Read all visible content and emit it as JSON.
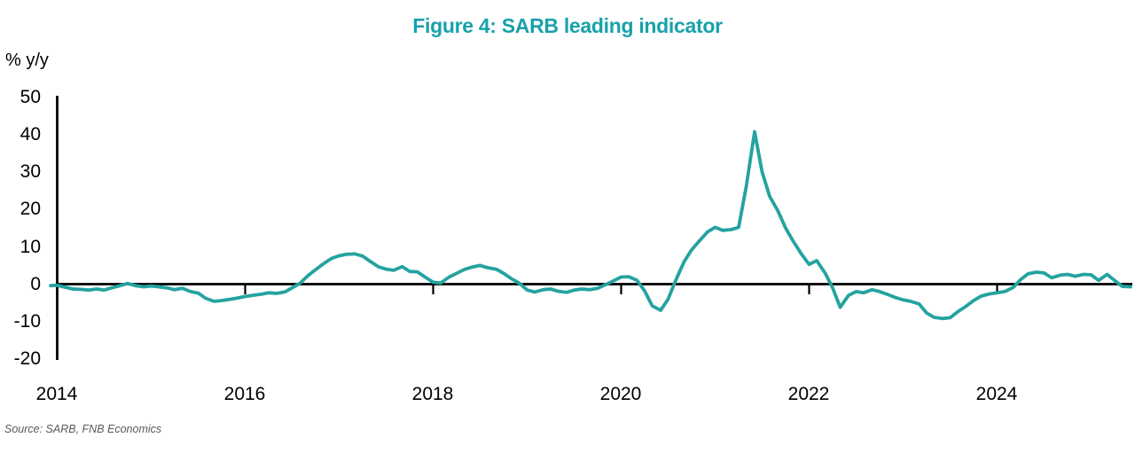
{
  "title": "Figure 4: SARB leading indicator",
  "source": "Source: SARB, FNB Economics",
  "chart_data": {
    "type": "line",
    "title": "Figure 4: SARB leading indicator",
    "unit_label": "% y/y",
    "series_name": "SARB leading indicator, % y/y",
    "x_ticks": [
      2014,
      2016,
      2018,
      2020,
      2022,
      2024
    ],
    "y_ticks": [
      50,
      40,
      30,
      20,
      10,
      0,
      -10,
      -20
    ],
    "xlim": [
      2014,
      2025.5
    ],
    "ylim": [
      -20,
      50
    ],
    "grid": false,
    "legend": "none",
    "title_color": "#18A1AB",
    "line_color": "#24A3A0",
    "axis_color": "#000000",
    "points": [
      [
        2013.93,
        -0.4
      ],
      [
        2014.0,
        -0.3
      ],
      [
        2014.08,
        -0.8
      ],
      [
        2014.17,
        -1.3
      ],
      [
        2014.25,
        -1.4
      ],
      [
        2014.33,
        -1.6
      ],
      [
        2014.42,
        -1.3
      ],
      [
        2014.5,
        -1.6
      ],
      [
        2014.58,
        -1.0
      ],
      [
        2014.67,
        -0.4
      ],
      [
        2014.75,
        0.2
      ],
      [
        2014.83,
        -0.4
      ],
      [
        2014.92,
        -0.7
      ],
      [
        2015.0,
        -0.5
      ],
      [
        2015.08,
        -0.7
      ],
      [
        2015.17,
        -1.0
      ],
      [
        2015.25,
        -1.5
      ],
      [
        2015.33,
        -1.1
      ],
      [
        2015.42,
        -2.0
      ],
      [
        2015.5,
        -2.4
      ],
      [
        2015.58,
        -3.8
      ],
      [
        2015.67,
        -4.6
      ],
      [
        2015.75,
        -4.4
      ],
      [
        2015.83,
        -4.1
      ],
      [
        2015.92,
        -3.7
      ],
      [
        2016.0,
        -3.3
      ],
      [
        2016.08,
        -3.0
      ],
      [
        2016.17,
        -2.7
      ],
      [
        2016.25,
        -2.3
      ],
      [
        2016.33,
        -2.5
      ],
      [
        2016.42,
        -2.1
      ],
      [
        2016.5,
        -1.0
      ],
      [
        2016.58,
        0.2
      ],
      [
        2016.67,
        2.3
      ],
      [
        2016.75,
        3.9
      ],
      [
        2016.83,
        5.4
      ],
      [
        2016.92,
        6.9
      ],
      [
        2017.0,
        7.6
      ],
      [
        2017.08,
        8.0
      ],
      [
        2017.17,
        8.1
      ],
      [
        2017.25,
        7.5
      ],
      [
        2017.33,
        6.1
      ],
      [
        2017.42,
        4.6
      ],
      [
        2017.5,
        4.0
      ],
      [
        2017.58,
        3.7
      ],
      [
        2017.67,
        4.7
      ],
      [
        2017.75,
        3.4
      ],
      [
        2017.83,
        3.3
      ],
      [
        2017.92,
        1.8
      ],
      [
        2018.0,
        0.5
      ],
      [
        2018.08,
        0.3
      ],
      [
        2018.17,
        1.9
      ],
      [
        2018.25,
        2.9
      ],
      [
        2018.33,
        3.9
      ],
      [
        2018.42,
        4.6
      ],
      [
        2018.5,
        5.0
      ],
      [
        2018.58,
        4.4
      ],
      [
        2018.67,
        4.0
      ],
      [
        2018.75,
        2.9
      ],
      [
        2018.83,
        1.5
      ],
      [
        2018.92,
        0.2
      ],
      [
        2019.0,
        -1.6
      ],
      [
        2019.08,
        -2.1
      ],
      [
        2019.17,
        -1.5
      ],
      [
        2019.25,
        -1.3
      ],
      [
        2019.33,
        -1.9
      ],
      [
        2019.42,
        -2.2
      ],
      [
        2019.5,
        -1.6
      ],
      [
        2019.58,
        -1.3
      ],
      [
        2019.67,
        -1.5
      ],
      [
        2019.75,
        -1.1
      ],
      [
        2019.83,
        -0.2
      ],
      [
        2019.92,
        0.9
      ],
      [
        2020.0,
        1.9
      ],
      [
        2020.08,
        2.0
      ],
      [
        2020.17,
        1.0
      ],
      [
        2020.25,
        -1.8
      ],
      [
        2020.33,
        -5.8
      ],
      [
        2020.42,
        -7.0
      ],
      [
        2020.5,
        -4.0
      ],
      [
        2020.58,
        1.0
      ],
      [
        2020.67,
        6.0
      ],
      [
        2020.75,
        9.2
      ],
      [
        2020.83,
        11.5
      ],
      [
        2020.92,
        14.0
      ],
      [
        2021.0,
        15.2
      ],
      [
        2021.08,
        14.4
      ],
      [
        2021.17,
        14.6
      ],
      [
        2021.25,
        15.2
      ],
      [
        2021.33,
        26.0
      ],
      [
        2021.42,
        40.8
      ],
      [
        2021.5,
        30.0
      ],
      [
        2021.58,
        23.5
      ],
      [
        2021.67,
        19.5
      ],
      [
        2021.75,
        15.0
      ],
      [
        2021.83,
        11.5
      ],
      [
        2021.92,
        8.0
      ],
      [
        2022.0,
        5.3
      ],
      [
        2022.08,
        6.3
      ],
      [
        2022.17,
        3.0
      ],
      [
        2022.25,
        -1.0
      ],
      [
        2022.33,
        -6.2
      ],
      [
        2022.42,
        -3.0
      ],
      [
        2022.5,
        -2.0
      ],
      [
        2022.58,
        -2.3
      ],
      [
        2022.67,
        -1.5
      ],
      [
        2022.75,
        -2.0
      ],
      [
        2022.83,
        -2.7
      ],
      [
        2022.92,
        -3.6
      ],
      [
        2023.0,
        -4.2
      ],
      [
        2023.08,
        -4.6
      ],
      [
        2023.17,
        -5.3
      ],
      [
        2023.25,
        -7.7
      ],
      [
        2023.33,
        -8.9
      ],
      [
        2023.42,
        -9.2
      ],
      [
        2023.5,
        -9.0
      ],
      [
        2023.58,
        -7.4
      ],
      [
        2023.67,
        -5.9
      ],
      [
        2023.75,
        -4.4
      ],
      [
        2023.83,
        -3.2
      ],
      [
        2023.92,
        -2.6
      ],
      [
        2024.0,
        -2.3
      ],
      [
        2024.08,
        -2.0
      ],
      [
        2024.17,
        -0.9
      ],
      [
        2024.25,
        1.2
      ],
      [
        2024.33,
        2.8
      ],
      [
        2024.42,
        3.2
      ],
      [
        2024.5,
        3.0
      ],
      [
        2024.58,
        1.7
      ],
      [
        2024.67,
        2.4
      ],
      [
        2024.75,
        2.6
      ],
      [
        2024.83,
        2.1
      ],
      [
        2024.92,
        2.6
      ],
      [
        2025.0,
        2.5
      ],
      [
        2025.08,
        1.0
      ],
      [
        2025.17,
        2.6
      ],
      [
        2025.25,
        1.0
      ],
      [
        2025.33,
        -0.6
      ],
      [
        2025.42,
        -0.7
      ]
    ]
  }
}
